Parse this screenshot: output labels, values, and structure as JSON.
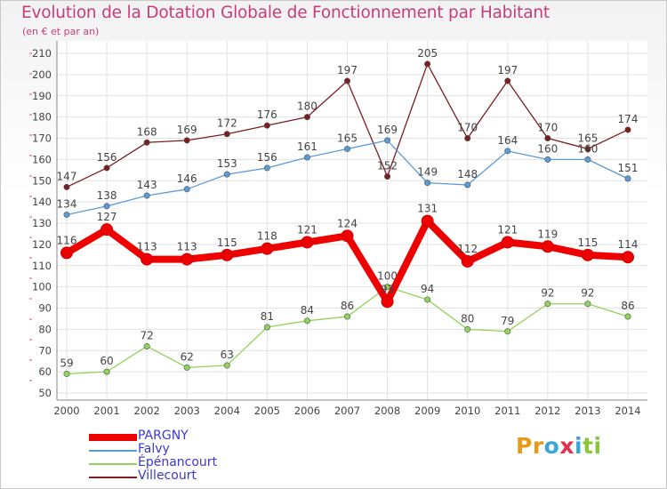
{
  "title": "Evolution de la Dotation Globale de Fonctionnement par Habitant",
  "subtitle": "(en € et par an)",
  "logo": {
    "letters": [
      "P",
      "r",
      "o",
      "x",
      "i",
      "t",
      "i"
    ],
    "colors": [
      "#e89a1a",
      "#e89a1a",
      "#3aa6d8",
      "#e0304a",
      "#3aa6d8",
      "#8cc63f",
      "#8cc63f"
    ]
  },
  "colors": {
    "pargny": "#ee0000",
    "falvy": "#5b9bd5",
    "epenancourt": "#8fd35a",
    "villecourt": "#7a1e1e",
    "title": "#c83c7c",
    "legend_text": "#3a3ad0"
  },
  "chart_data": {
    "type": "line",
    "title": "Evolution de la Dotation Globale de Fonctionnement par Habitant",
    "subtitle": "(en € et par an)",
    "xlabel": "",
    "ylabel": "",
    "grid": true,
    "ylim": [
      50,
      210
    ],
    "yticks": [
      50,
      60,
      70,
      80,
      90,
      100,
      110,
      120,
      130,
      140,
      150,
      160,
      170,
      180,
      190,
      200,
      210
    ],
    "x": [
      "2000",
      "2001",
      "2002",
      "2003",
      "2004",
      "2005",
      "2006",
      "2007",
      "2008",
      "2009",
      "2010",
      "2011",
      "2012",
      "2013",
      "2014"
    ],
    "series": [
      {
        "key": "villecourt",
        "name": "Villecourt",
        "values": [
          147,
          156,
          168,
          169,
          172,
          176,
          180,
          197,
          152,
          205,
          170,
          197,
          170,
          165,
          174
        ]
      },
      {
        "key": "falvy",
        "name": "Falvy",
        "values": [
          134,
          138,
          143,
          146,
          153,
          156,
          161,
          165,
          169,
          149,
          148,
          164,
          160,
          160,
          151
        ]
      },
      {
        "key": "epenancourt",
        "name": "Épénancourt",
        "values": [
          59,
          60,
          72,
          62,
          63,
          81,
          84,
          86,
          100,
          94,
          80,
          79,
          92,
          92,
          86
        ]
      },
      {
        "key": "pargny",
        "name": "PARGNY",
        "values": [
          116,
          127,
          113,
          113,
          115,
          118,
          121,
          124,
          93,
          131,
          112,
          121,
          119,
          115,
          114
        ]
      }
    ],
    "legend": [
      "PARGNY",
      "Falvy",
      "Épénancourt",
      "Villecourt"
    ],
    "legend_position": "bottom-left"
  }
}
